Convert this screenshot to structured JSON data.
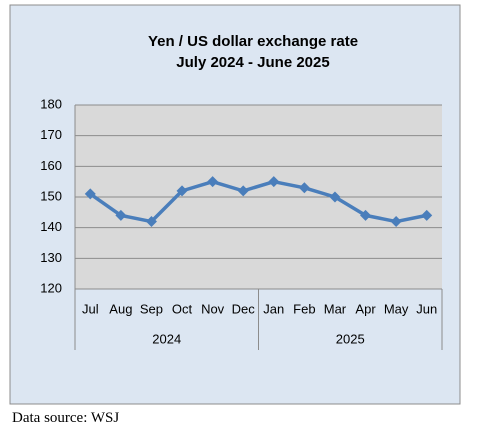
{
  "chart_data": {
    "type": "line",
    "title": "Yen / US dollar exchange rate",
    "subtitle": "July 2024 - June 2025",
    "categories": [
      "Jul",
      "Aug",
      "Sep",
      "Oct",
      "Nov",
      "Dec",
      "Jan",
      "Feb",
      "Mar",
      "Apr",
      "May",
      "Jun"
    ],
    "category_groups": [
      {
        "label": "2024",
        "count": 6
      },
      {
        "label": "2025",
        "count": 6
      }
    ],
    "series": [
      {
        "name": "Yen / US dollar",
        "color": "#4a7ebb",
        "values": [
          151,
          144,
          142,
          152,
          155,
          152,
          155,
          153,
          150,
          144,
          142,
          144
        ]
      }
    ],
    "ylim": [
      120,
      180
    ],
    "yticks": [
      120,
      130,
      140,
      150,
      160,
      170,
      180
    ],
    "grid": true
  },
  "source": "Data source: WSJ"
}
